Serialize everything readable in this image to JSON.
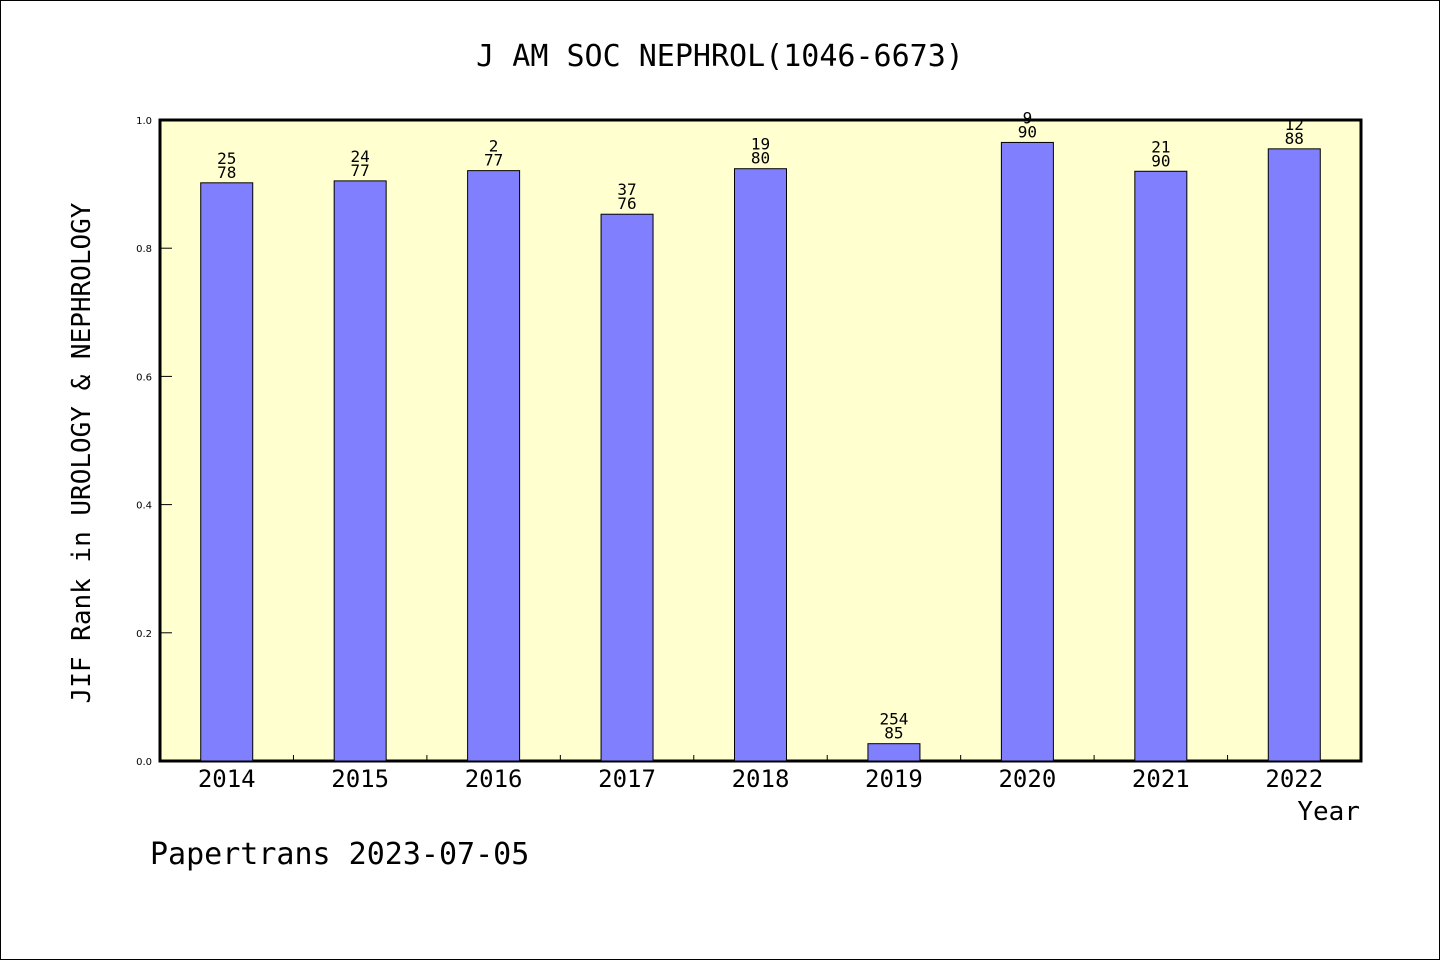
{
  "chart_data": {
    "type": "bar",
    "title": "J AM SOC NEPHROL(1046-6673)",
    "xlabel": "Year",
    "ylabel": "JIF Rank in UROLOGY & NEPHROLOGY",
    "ylim": [
      0,
      1.0
    ],
    "yticks": [
      "0.0",
      "0.2",
      "0.4",
      "0.6",
      "0.8",
      "1.0"
    ],
    "categories": [
      "2014",
      "2015",
      "2016",
      "2017",
      "2018",
      "2019",
      "2020",
      "2021",
      "2022"
    ],
    "values": [
      0.902,
      0.905,
      0.921,
      0.853,
      0.924,
      0.027,
      0.965,
      0.92,
      0.955
    ],
    "labels_top": [
      "25",
      "24",
      "2",
      "37",
      "19",
      "254",
      "9",
      "21",
      "12"
    ],
    "labels_bottom": [
      "78",
      "77",
      "77",
      "76",
      "80",
      "85",
      "90",
      "90",
      "88"
    ],
    "grid": false,
    "colors": {
      "plot_background": "#ffffd0",
      "bar_fill": "#8080ff",
      "bar_stroke": "#000000"
    }
  },
  "footer": "Papertrans 2023-07-05"
}
